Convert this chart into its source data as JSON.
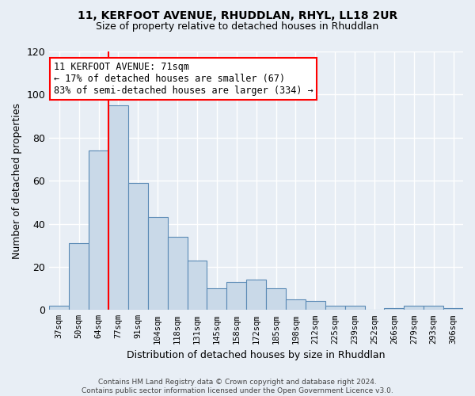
{
  "title": "11, KERFOOT AVENUE, RHUDDLAN, RHYL, LL18 2UR",
  "subtitle": "Size of property relative to detached houses in Rhuddlan",
  "xlabel": "Distribution of detached houses by size in Rhuddlan",
  "ylabel": "Number of detached properties",
  "categories": [
    "37sqm",
    "50sqm",
    "64sqm",
    "77sqm",
    "91sqm",
    "104sqm",
    "118sqm",
    "131sqm",
    "145sqm",
    "158sqm",
    "172sqm",
    "185sqm",
    "198sqm",
    "212sqm",
    "225sqm",
    "239sqm",
    "252sqm",
    "266sqm",
    "279sqm",
    "293sqm",
    "306sqm"
  ],
  "values": [
    2,
    31,
    74,
    95,
    59,
    43,
    34,
    23,
    10,
    13,
    14,
    10,
    5,
    4,
    2,
    2,
    0,
    1,
    2,
    2,
    1
  ],
  "bar_color": "#c9d9e8",
  "bar_edge_color": "#5a8ab5",
  "red_line_index": 2.5,
  "annotation_text": "11 KERFOOT AVENUE: 71sqm\n← 17% of detached houses are smaller (67)\n83% of semi-detached houses are larger (334) →",
  "annotation_box_color": "white",
  "annotation_box_edge_color": "red",
  "ylim": [
    0,
    120
  ],
  "yticks": [
    0,
    20,
    40,
    60,
    80,
    100,
    120
  ],
  "background_color": "#e8eef5",
  "grid_color": "white",
  "footer": "Contains HM Land Registry data © Crown copyright and database right 2024.\nContains public sector information licensed under the Open Government Licence v3.0."
}
